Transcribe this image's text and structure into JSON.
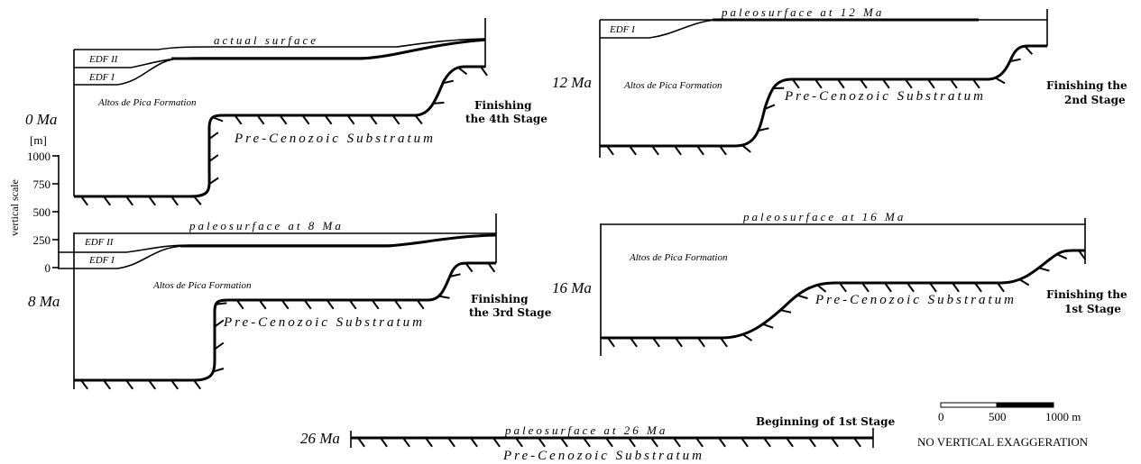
{
  "panels": [
    {
      "age": "0 Ma",
      "surface": "actual surface",
      "units": [
        "EDF II",
        "EDF I"
      ],
      "formation": "Altos de Pica Formation",
      "substratum": "Pre-Cenozoic Substratum",
      "stage": [
        "Finishing",
        "the 4th Stage"
      ]
    },
    {
      "age": "8 Ma",
      "surface": "paleosurface at 8 Ma",
      "units": [
        "EDF II",
        "EDF I"
      ],
      "formation": "Altos de Pica Formation",
      "substratum": "Pre-Cenozoic Substratum",
      "stage": [
        "Finishing",
        "the 3rd Stage"
      ]
    },
    {
      "age": "12 Ma",
      "surface": "paleosurface at 12 Ma",
      "units": [
        "EDF I"
      ],
      "formation": "Altos de Pica Formation",
      "substratum": "Pre-Cenozoic Substratum",
      "stage": [
        "Finishing the",
        "2nd Stage"
      ]
    },
    {
      "age": "16 Ma",
      "surface": "paleosurface at 16 Ma",
      "units": [],
      "formation": "Altos de Pica Formation",
      "substratum": "Pre-Cenozoic Substratum",
      "stage": [
        "Finishing the",
        "1st Stage"
      ]
    },
    {
      "age": "26 Ma",
      "surface": "paleosurface at 26 Ma",
      "units": [],
      "formation": "",
      "substratum": "Pre-Cenozoic Substratum",
      "stage": [
        "Beginning of 1st Stage"
      ]
    }
  ],
  "vertical_scale": {
    "title": "vertical scale",
    "unit": "[m]",
    "ticks": [
      "1000",
      "750",
      "500",
      "250",
      "0"
    ]
  },
  "horizontal_scale": {
    "labels": [
      "0",
      "500",
      "1000 m"
    ],
    "note": "NO VERTICAL EXAGGERATION"
  }
}
